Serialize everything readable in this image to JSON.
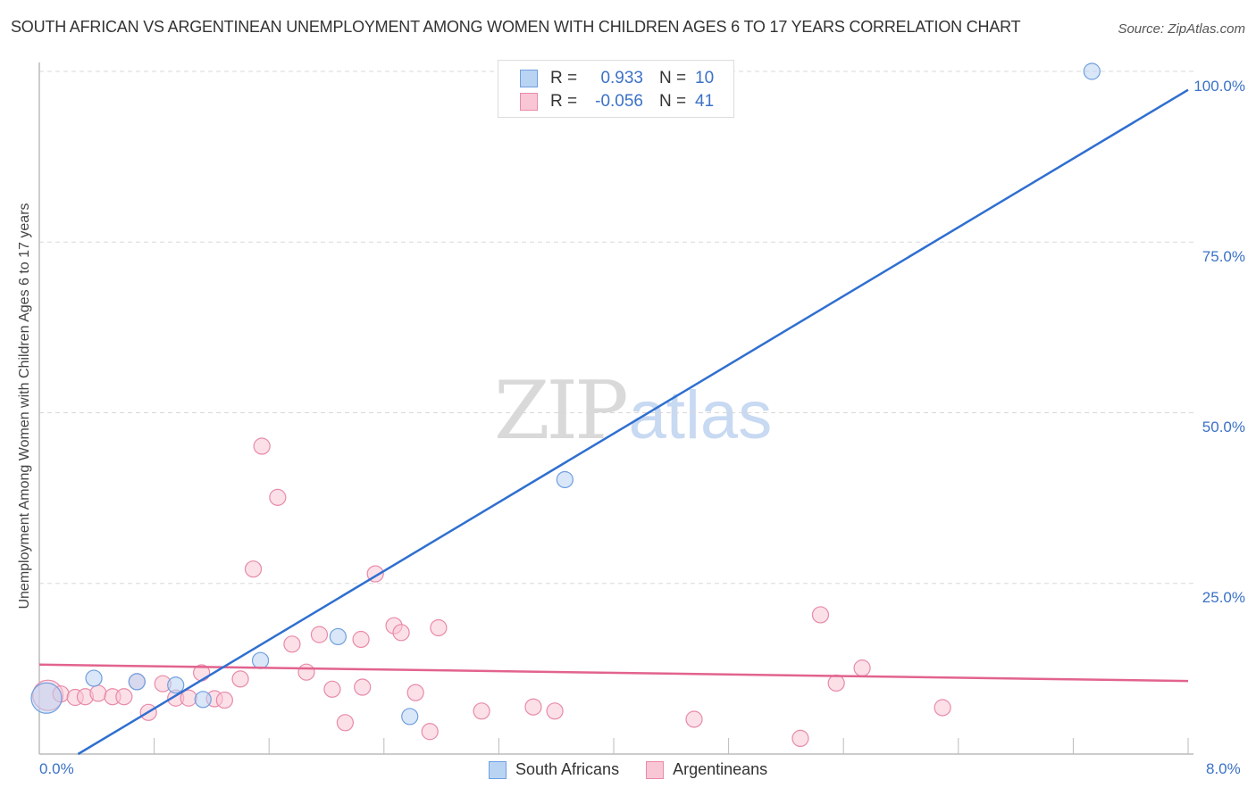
{
  "header": {
    "title": "SOUTH AFRICAN VS ARGENTINEAN UNEMPLOYMENT AMONG WOMEN WITH CHILDREN AGES 6 TO 17 YEARS CORRELATION CHART",
    "source": "Source: ZipAtlas.com"
  },
  "watermark": {
    "zip": "ZIP",
    "atlas": "atlas"
  },
  "axes": {
    "ylabel": "Unemployment Among Women with Children Ages 6 to 17 years",
    "y_ticks": [
      "100.0%",
      "75.0%",
      "50.0%",
      "25.0%"
    ],
    "x_min_label": "0.0%",
    "x_max_label": "8.0%"
  },
  "legend_top": {
    "rows": [
      {
        "r_label": "R =",
        "r_value": "0.933",
        "n_label": "N =",
        "n_value": "10"
      },
      {
        "r_label": "R =",
        "r_value": "-0.056",
        "n_label": "N =",
        "n_value": "41"
      }
    ]
  },
  "legend_bottom": {
    "items": [
      {
        "label": "South Africans"
      },
      {
        "label": "Argentineans"
      }
    ]
  },
  "colors": {
    "blue_fill": "#b9d3f3",
    "blue_stroke": "#6f9fe0",
    "blue_line": "#2f6fd0",
    "pink_fill": "#f9c6d6",
    "pink_stroke": "#e88aa8",
    "pink_line": "#e2638e",
    "tick_label": "#3b72c6",
    "grid": "#d8d8d8"
  },
  "chart_data": {
    "type": "scatter",
    "title": "SOUTH AFRICAN VS ARGENTINEAN UNEMPLOYMENT AMONG WOMEN WITH CHILDREN AGES 6 TO 17 YEARS CORRELATION CHART",
    "xlabel": "",
    "ylabel": "Unemployment Among Women with Children Ages 6 to 17 years",
    "xlim": [
      0,
      8
    ],
    "ylim": [
      0,
      100
    ],
    "x_unit": "%",
    "y_unit": "%",
    "grid": true,
    "legend_position": "top-center and bottom-center",
    "series": [
      {
        "name": "South Africans",
        "color": "#6f9fe0",
        "R": 0.933,
        "N": 10,
        "points": [
          {
            "x": 0.05,
            "y": 8.2,
            "size": "large"
          },
          {
            "x": 0.38,
            "y": 11.1
          },
          {
            "x": 0.68,
            "y": 10.6
          },
          {
            "x": 0.95,
            "y": 10.1
          },
          {
            "x": 1.14,
            "y": 8.0
          },
          {
            "x": 1.54,
            "y": 13.7
          },
          {
            "x": 2.08,
            "y": 17.2
          },
          {
            "x": 2.58,
            "y": 5.5
          },
          {
            "x": 3.66,
            "y": 40.2
          },
          {
            "x": 7.33,
            "y": 100.0
          }
        ],
        "trendline": {
          "x": [
            0.27,
            8.0
          ],
          "y": [
            0.0,
            97.3
          ]
        }
      },
      {
        "name": "Argentineans",
        "color": "#e88aa8",
        "R": -0.056,
        "N": 41,
        "points": [
          {
            "x": 0.06,
            "y": 8.6,
            "size": "large"
          },
          {
            "x": 0.15,
            "y": 8.8
          },
          {
            "x": 0.25,
            "y": 8.3
          },
          {
            "x": 0.32,
            "y": 8.4
          },
          {
            "x": 0.41,
            "y": 8.9
          },
          {
            "x": 0.51,
            "y": 8.4
          },
          {
            "x": 0.59,
            "y": 8.4
          },
          {
            "x": 0.68,
            "y": 10.6
          },
          {
            "x": 0.76,
            "y": 6.1
          },
          {
            "x": 0.86,
            "y": 10.3
          },
          {
            "x": 0.95,
            "y": 8.2
          },
          {
            "x": 1.04,
            "y": 8.2
          },
          {
            "x": 1.13,
            "y": 11.9
          },
          {
            "x": 1.22,
            "y": 8.1
          },
          {
            "x": 1.29,
            "y": 7.9
          },
          {
            "x": 1.4,
            "y": 11.0
          },
          {
            "x": 1.49,
            "y": 27.1
          },
          {
            "x": 1.55,
            "y": 45.1
          },
          {
            "x": 1.66,
            "y": 37.6
          },
          {
            "x": 1.76,
            "y": 16.1
          },
          {
            "x": 1.86,
            "y": 12.0
          },
          {
            "x": 1.95,
            "y": 17.5
          },
          {
            "x": 2.04,
            "y": 9.5
          },
          {
            "x": 2.13,
            "y": 4.6
          },
          {
            "x": 2.24,
            "y": 16.8
          },
          {
            "x": 2.25,
            "y": 9.8
          },
          {
            "x": 2.34,
            "y": 26.4
          },
          {
            "x": 2.47,
            "y": 18.8
          },
          {
            "x": 2.52,
            "y": 17.8
          },
          {
            "x": 2.62,
            "y": 9.0
          },
          {
            "x": 2.72,
            "y": 3.3
          },
          {
            "x": 2.78,
            "y": 18.5
          },
          {
            "x": 3.08,
            "y": 6.3
          },
          {
            "x": 3.44,
            "y": 6.9
          },
          {
            "x": 3.59,
            "y": 6.3
          },
          {
            "x": 4.56,
            "y": 5.1
          },
          {
            "x": 5.3,
            "y": 2.3
          },
          {
            "x": 5.44,
            "y": 20.4
          },
          {
            "x": 5.55,
            "y": 10.4
          },
          {
            "x": 5.73,
            "y": 12.6
          },
          {
            "x": 6.29,
            "y": 6.8
          }
        ],
        "trendline": {
          "x": [
            0.0,
            8.0
          ],
          "y": [
            13.1,
            10.7
          ]
        }
      }
    ]
  }
}
